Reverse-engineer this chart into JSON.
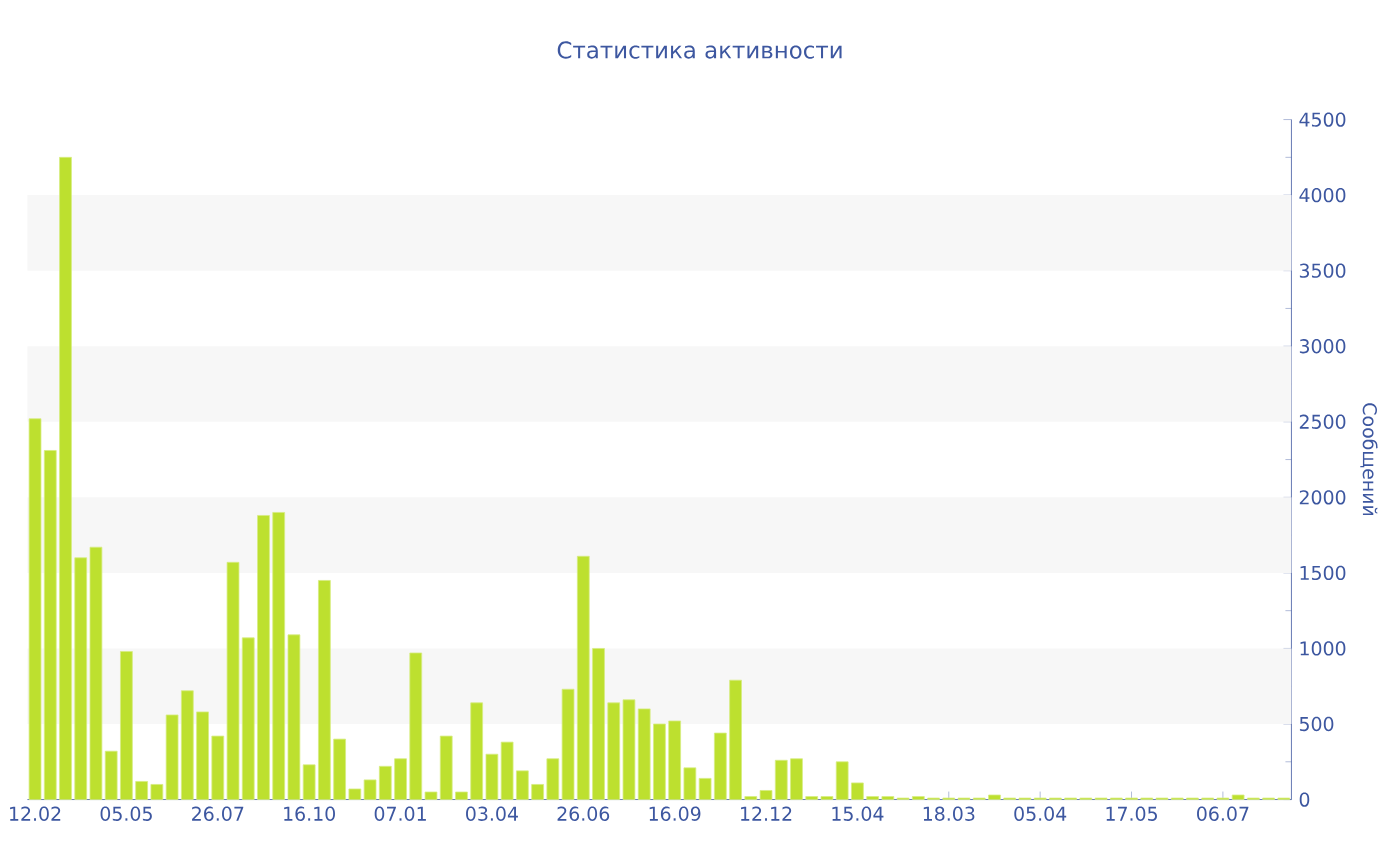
{
  "chart_data": {
    "type": "bar",
    "title": "Статистика активности",
    "ylabel": "Сообщений",
    "color": "#bde02f",
    "categories": [
      "12.02",
      null,
      null,
      null,
      null,
      null,
      "05.05",
      null,
      null,
      null,
      null,
      null,
      "26.07",
      null,
      null,
      null,
      null,
      null,
      "16.10",
      null,
      null,
      null,
      null,
      null,
      "07.01",
      null,
      null,
      null,
      null,
      null,
      "03.04",
      null,
      null,
      null,
      null,
      null,
      "26.06",
      null,
      null,
      null,
      null,
      null,
      "16.09",
      null,
      null,
      null,
      null,
      null,
      "12.12",
      null,
      null,
      null,
      null,
      null,
      "15.04",
      null,
      null,
      null,
      null,
      null,
      "18.03",
      null,
      null,
      null,
      null,
      null,
      "05.04",
      null,
      null,
      null,
      null,
      null,
      "17.05",
      null,
      null,
      null,
      null,
      null,
      "06.07",
      null,
      null,
      null,
      null
    ],
    "values": [
      2520,
      2310,
      4250,
      1600,
      1670,
      320,
      980,
      120,
      100,
      560,
      720,
      580,
      420,
      1570,
      1070,
      1880,
      1900,
      1090,
      230,
      1450,
      400,
      70,
      130,
      220,
      270,
      970,
      50,
      420,
      50,
      640,
      300,
      380,
      190,
      100,
      270,
      730,
      1610,
      1000,
      640,
      660,
      600,
      500,
      520,
      210,
      140,
      440,
      790,
      20,
      60,
      260,
      270,
      20,
      20,
      250,
      110,
      20,
      20,
      10,
      20,
      10,
      10,
      10,
      10,
      30,
      10,
      10,
      10,
      10,
      10,
      10,
      10,
      10,
      10,
      10,
      10,
      10,
      10,
      10,
      10,
      30,
      10,
      10,
      10
    ],
    "ylim": [
      0,
      4500
    ],
    "yticks": [
      0,
      500,
      1000,
      1500,
      2000,
      2500,
      3000,
      3500,
      4000,
      4500
    ],
    "bands": [
      {
        "axis": "y",
        "from": 500,
        "to": 1000,
        "color": "#f7f7f7"
      },
      {
        "axis": "y",
        "from": 1500,
        "to": 2000,
        "color": "#f7f7f7"
      },
      {
        "axis": "y",
        "from": 2500,
        "to": 3000,
        "color": "#f7f7f7"
      },
      {
        "axis": "y",
        "from": 3500,
        "to": 4000,
        "color": "#f7f7f7"
      }
    ]
  }
}
